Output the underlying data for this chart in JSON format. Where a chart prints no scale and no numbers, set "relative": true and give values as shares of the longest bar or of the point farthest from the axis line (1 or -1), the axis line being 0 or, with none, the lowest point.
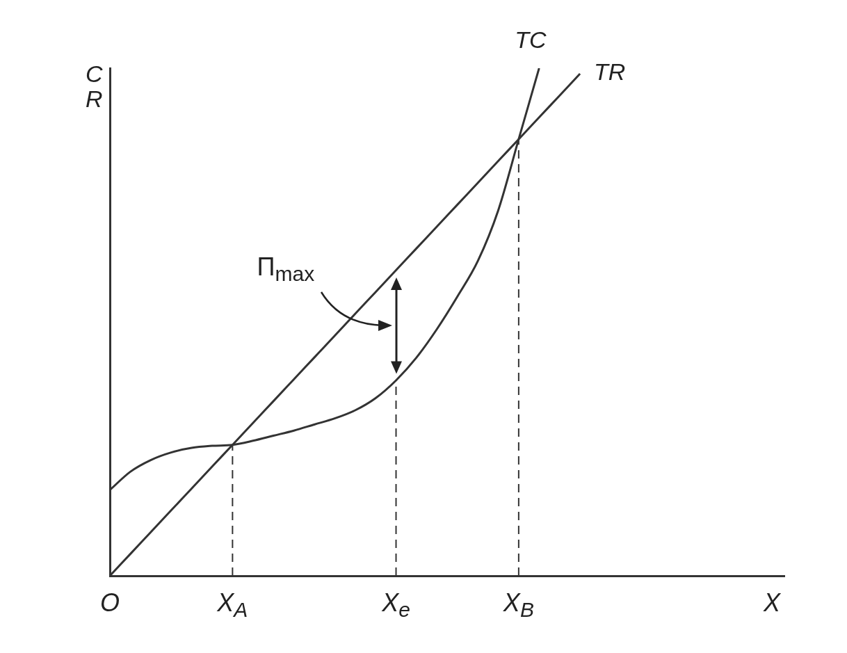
{
  "chart_data": {
    "type": "line",
    "relative": true,
    "xlabel": "X",
    "ylabel": "C\nR",
    "categories": [
      "O",
      null,
      null,
      null,
      null,
      null,
      "X$_{A}$",
      null,
      null,
      null,
      null,
      null,
      null,
      null,
      "X$_{e}$",
      null,
      null,
      null,
      null,
      null,
      "X$_{B}$",
      null,
      null,
      null,
      null,
      null,
      null,
      null,
      null,
      null,
      null,
      null,
      null,
      null
    ],
    "series": [
      {
        "name": "TC",
        "color": "#333333",
        "values": [
          0.169,
          0.205,
          0.228,
          0.243,
          0.252,
          0.256,
          0.258,
          0.266,
          0.276,
          0.286,
          0.298,
          0.31,
          0.326,
          0.35,
          0.385,
          0.43,
          0.486,
          0.55,
          0.62,
          0.72,
          0.86,
          1.0,
          null,
          null,
          null,
          null,
          null,
          null,
          null,
          null,
          null,
          null,
          null,
          null
        ]
      },
      {
        "name": "TR",
        "color": "#333333",
        "values": [
          0,
          0.043,
          0.086,
          0.129,
          0.172,
          0.215,
          0.258,
          0.301,
          0.344,
          0.387,
          0.43,
          0.473,
          0.516,
          0.559,
          0.602,
          0.645,
          0.688,
          0.731,
          0.774,
          0.817,
          0.86,
          0.903,
          0.946,
          0.989,
          null,
          null,
          null,
          null,
          null,
          null,
          null,
          null,
          null,
          null
        ]
      }
    ],
    "ref_lines": [
      {
        "axis": "x",
        "value": "X$_{A}$",
        "line_style": "dashed"
      },
      {
        "axis": "x",
        "value": "X$_{e}$",
        "line_style": "dashed"
      },
      {
        "axis": "x",
        "value": "X$_{B}$",
        "line_style": "dashed"
      }
    ],
    "annotations": [
      "Π$_{max}$"
    ],
    "grid": false,
    "legend": false,
    "marker": "none",
    "tick_labels": "x"
  }
}
